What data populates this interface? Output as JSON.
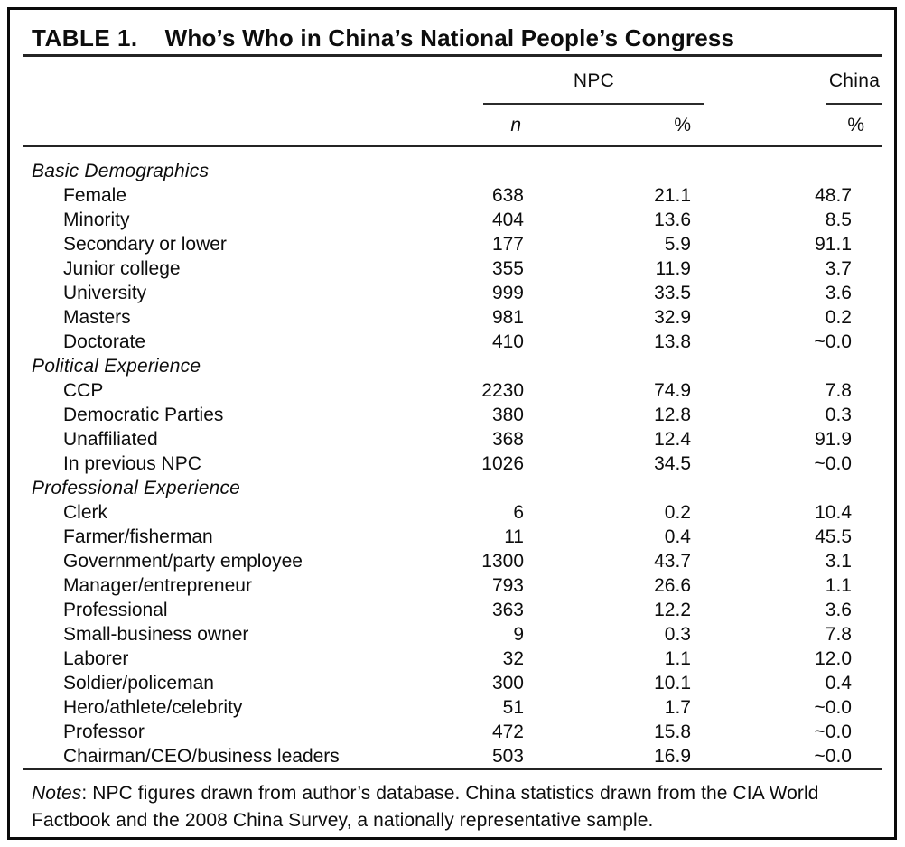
{
  "title": {
    "label": "TABLE 1.",
    "text": "Who’s Who in China’s National People’s Congress"
  },
  "header": {
    "group_npc": "NPC",
    "group_china": "China",
    "col_n": "n",
    "col_npc_pct": "%",
    "col_china_pct": "%"
  },
  "table": {
    "columns": [
      "label",
      "NPC n",
      "NPC %",
      "China %"
    ],
    "sections": [
      {
        "name": "Basic Demographics",
        "rows": [
          [
            "Female",
            "638",
            "21.1",
            "48.7"
          ],
          [
            "Minority",
            "404",
            "13.6",
            "8.5"
          ],
          [
            "Secondary or lower",
            "177",
            "5.9",
            "91.1"
          ],
          [
            "Junior college",
            "355",
            "11.9",
            "3.7"
          ],
          [
            "University",
            "999",
            "33.5",
            "3.6"
          ],
          [
            "Masters",
            "981",
            "32.9",
            "0.2"
          ],
          [
            "Doctorate",
            "410",
            "13.8",
            "~0.0"
          ]
        ]
      },
      {
        "name": "Political Experience",
        "rows": [
          [
            "CCP",
            "2230",
            "74.9",
            "7.8"
          ],
          [
            "Democratic Parties",
            "380",
            "12.8",
            "0.3"
          ],
          [
            "Unaffiliated",
            "368",
            "12.4",
            "91.9"
          ],
          [
            "In previous NPC",
            "1026",
            "34.5",
            "~0.0"
          ]
        ]
      },
      {
        "name": "Professional Experience",
        "rows": [
          [
            "Clerk",
            "6",
            "0.2",
            "10.4"
          ],
          [
            "Farmer/fisherman",
            "11",
            "0.4",
            "45.5"
          ],
          [
            "Government/party employee",
            "1300",
            "43.7",
            "3.1"
          ],
          [
            "Manager/entrepreneur",
            "793",
            "26.6",
            "1.1"
          ],
          [
            "Professional",
            "363",
            "12.2",
            "3.6"
          ],
          [
            "Small-business owner",
            "9",
            "0.3",
            "7.8"
          ],
          [
            "Laborer",
            "32",
            "1.1",
            "12.0"
          ],
          [
            "Soldier/policeman",
            "300",
            "10.1",
            "0.4"
          ],
          [
            "Hero/athlete/celebrity",
            "51",
            "1.7",
            "~0.0"
          ],
          [
            "Professor",
            "472",
            "15.8",
            "~0.0"
          ],
          [
            "Chairman/CEO/business leaders",
            "503",
            "16.9",
            "~0.0"
          ]
        ]
      }
    ]
  },
  "notes": {
    "label": "Notes",
    "text": ": NPC figures drawn from author’s database. China statistics drawn from the CIA World Factbook and the 2008 China Survey, a nationally representative sample."
  }
}
